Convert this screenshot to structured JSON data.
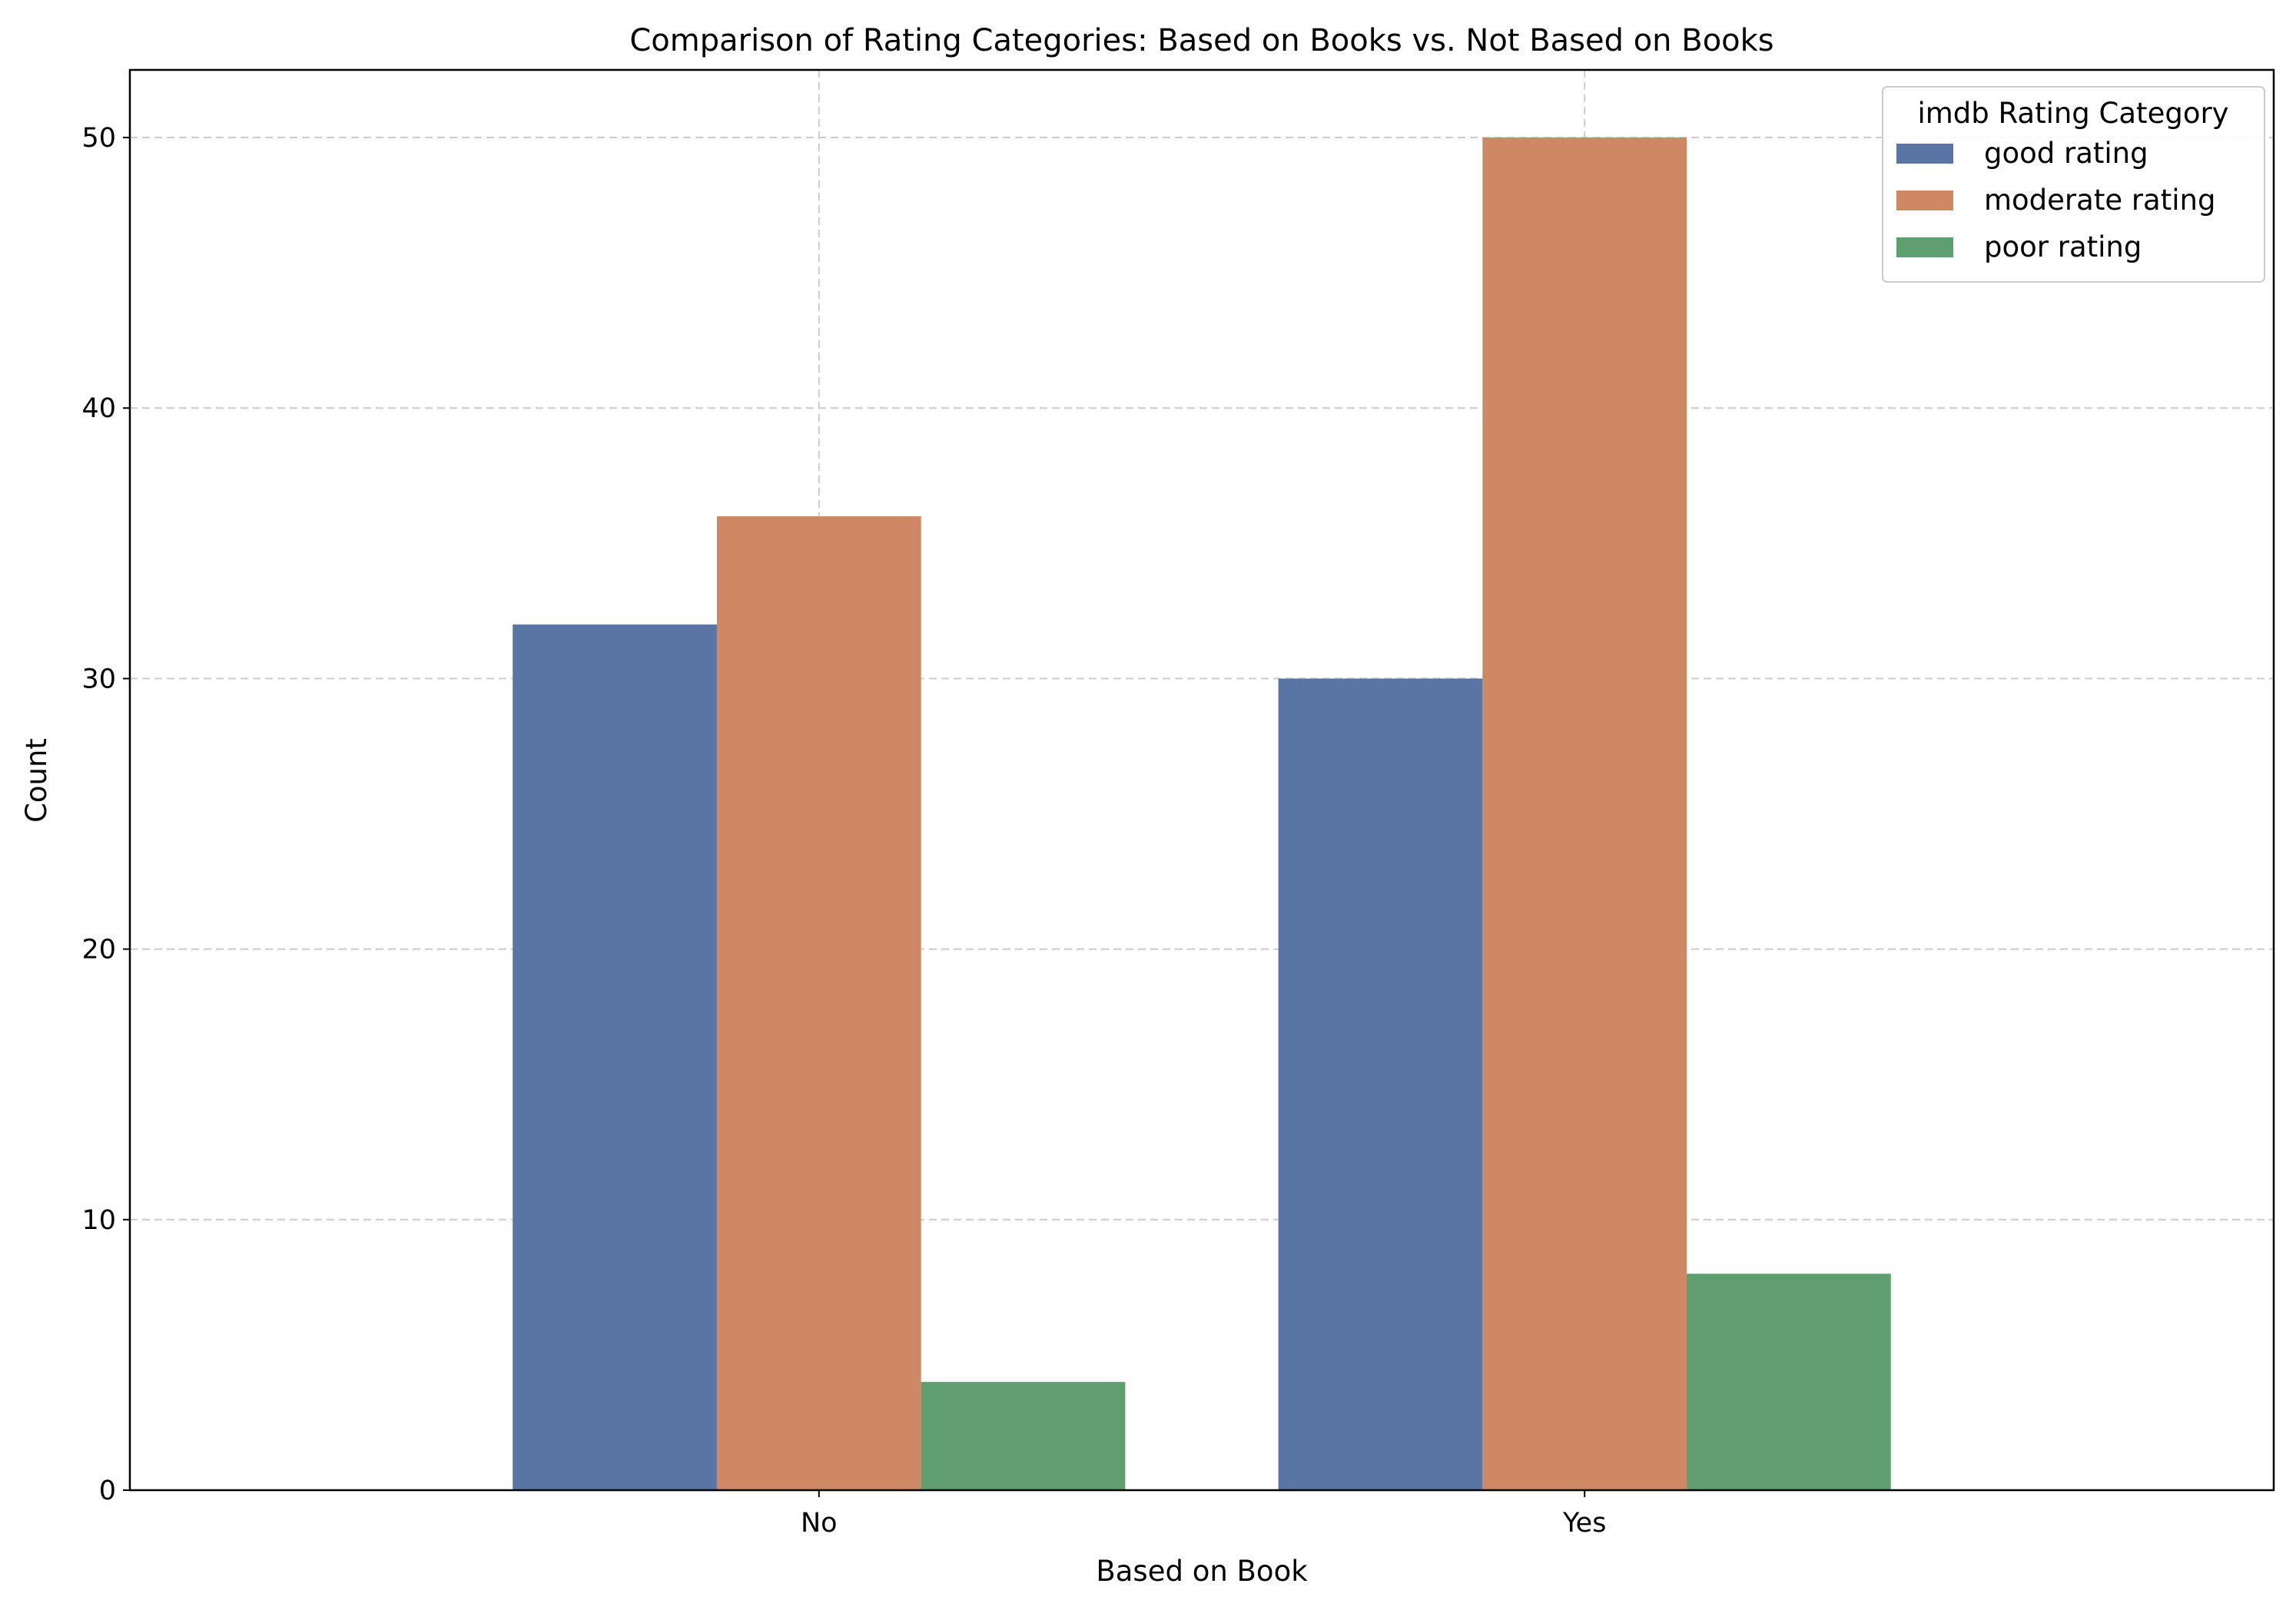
{
  "chart_data": {
    "type": "bar",
    "title": "Comparison of Rating Categories: Based on Books vs. Not Based on Books",
    "xlabel": "Based on Book",
    "ylabel": "Count",
    "categories": [
      "No",
      "Yes"
    ],
    "series": [
      {
        "name": "good rating",
        "values": [
          32,
          30
        ],
        "color": "#5875a4"
      },
      {
        "name": "moderate rating",
        "values": [
          36,
          50
        ],
        "color": "#cc8963"
      },
      {
        "name": "poor rating",
        "values": [
          4,
          8
        ],
        "color": "#5f9e6e"
      }
    ],
    "ylim": [
      0,
      52.5
    ],
    "yticks": [
      0,
      10,
      20,
      30,
      40,
      50
    ],
    "grid": true,
    "legend": {
      "title": "imdb Rating Category",
      "placement": "top-right"
    }
  }
}
